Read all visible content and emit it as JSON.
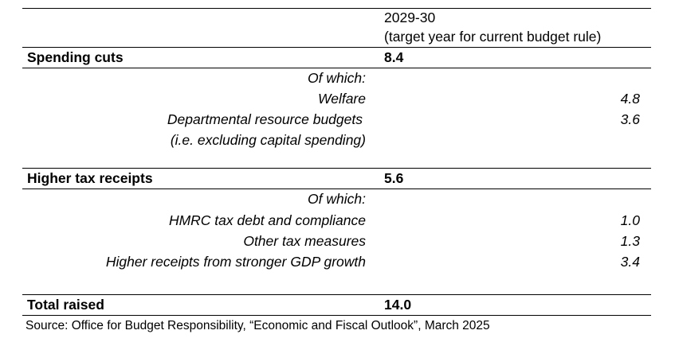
{
  "header": {
    "year": "2029-30",
    "year_note": "(target year for current budget rule)"
  },
  "sections": [
    {
      "category": "Spending cuts",
      "total": "8.4",
      "of_which": "Of which:",
      "items": [
        {
          "label": "Welfare",
          "value": "4.8"
        },
        {
          "label": "Departmental resource budgets",
          "label2": "(i.e. excluding capital spending)",
          "value": "3.6"
        }
      ]
    },
    {
      "category": "Higher tax receipts",
      "total": "5.6",
      "of_which": "Of which:",
      "items": [
        {
          "label": "HMRC tax debt and compliance",
          "value": "1.0"
        },
        {
          "label": "Other tax measures",
          "value": "1.3"
        },
        {
          "label": "Higher receipts from stronger GDP growth",
          "value": "3.4"
        }
      ]
    }
  ],
  "total": {
    "label": "Total raised",
    "value": "14.0"
  },
  "source": "Source: Office for Budget Responsibility, “Economic and Fiscal Outlook”, March 2025"
}
